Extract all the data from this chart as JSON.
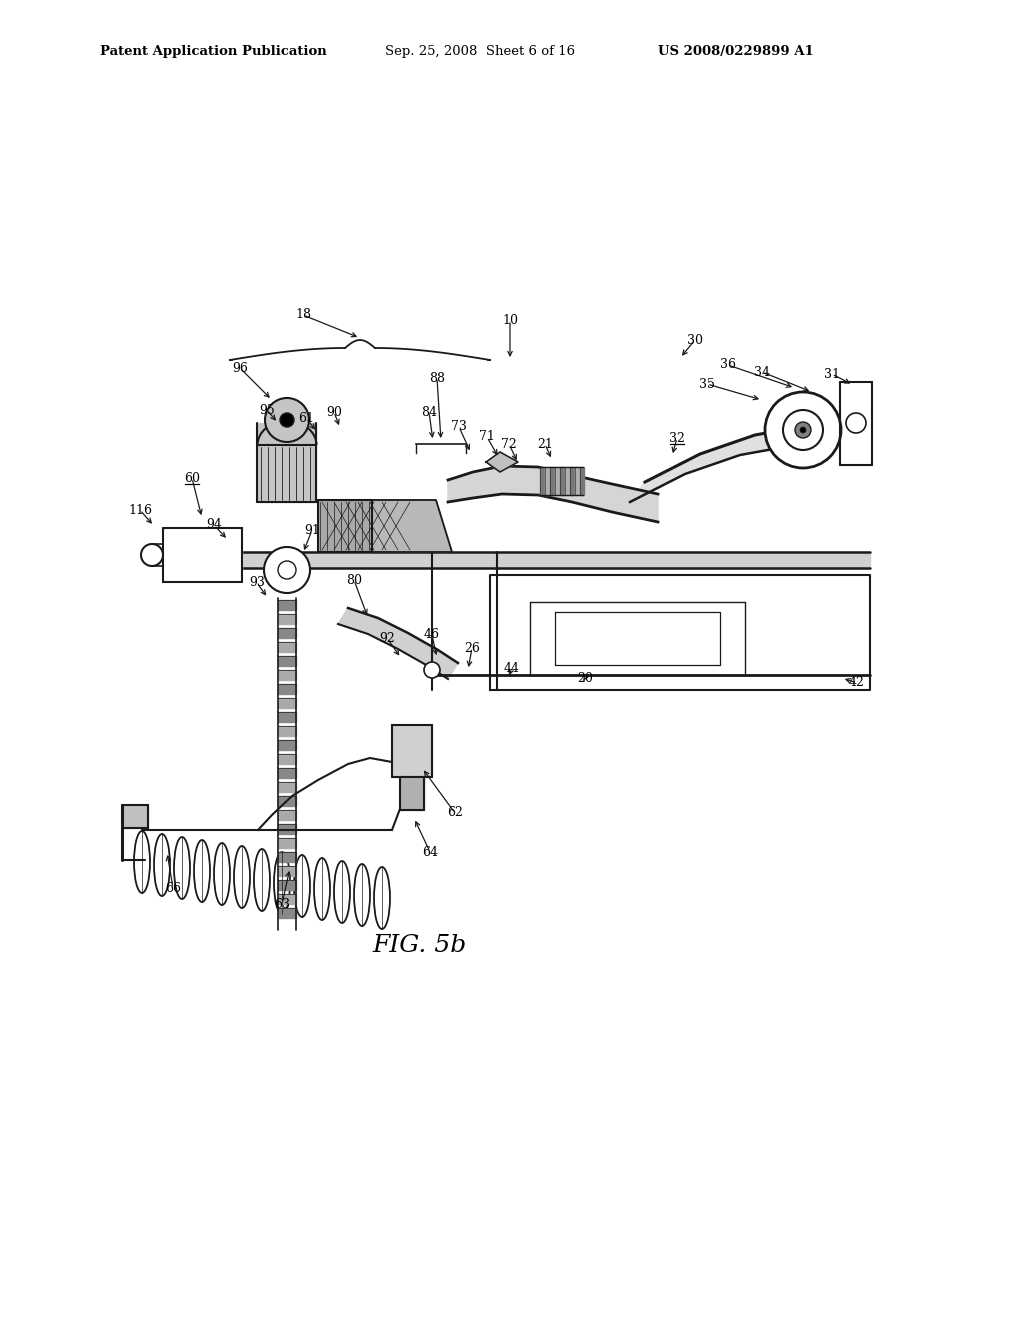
{
  "background_color": "#ffffff",
  "header_left": "Patent Application Publication",
  "header_center": "Sep. 25, 2008  Sheet 6 of 16",
  "header_right": "US 2008/0229899 A1",
  "figure_label": "FIG. 5b",
  "header_fontsize": 9.5,
  "figure_label_fontsize": 18,
  "line_color": "#1a1a1a",
  "label_fontsize": 9,
  "labels": [
    [
      303,
      1005,
      360,
      963,
      "18",
      false
    ],
    [
      510,
      1000,
      490,
      975,
      "10",
      false
    ],
    [
      695,
      980,
      680,
      962,
      "30",
      false
    ],
    [
      240,
      952,
      272,
      920,
      "96",
      false
    ],
    [
      437,
      942,
      441,
      882,
      "88",
      false
    ],
    [
      728,
      955,
      795,
      932,
      "36",
      false
    ],
    [
      762,
      948,
      812,
      928,
      "34",
      false
    ],
    [
      707,
      936,
      762,
      920,
      "35",
      false
    ],
    [
      832,
      946,
      853,
      935,
      "31",
      false
    ],
    [
      267,
      910,
      278,
      897,
      "95",
      false
    ],
    [
      306,
      902,
      317,
      888,
      "61",
      false
    ],
    [
      334,
      908,
      340,
      892,
      "90",
      false
    ],
    [
      429,
      908,
      433,
      879,
      "84",
      false
    ],
    [
      459,
      893,
      471,
      867,
      "73",
      false
    ],
    [
      487,
      883,
      499,
      862,
      "71",
      false
    ],
    [
      509,
      876,
      518,
      857,
      "72",
      false
    ],
    [
      545,
      876,
      552,
      860,
      "21",
      false
    ],
    [
      677,
      882,
      672,
      864,
      "32",
      true
    ],
    [
      192,
      842,
      202,
      802,
      "60",
      true
    ],
    [
      140,
      810,
      154,
      794,
      "116",
      false
    ],
    [
      214,
      795,
      228,
      780,
      "94",
      false
    ],
    [
      312,
      790,
      303,
      767,
      "91",
      false
    ],
    [
      354,
      740,
      368,
      702,
      "80",
      false
    ],
    [
      257,
      737,
      268,
      722,
      "93",
      false
    ],
    [
      387,
      682,
      401,
      662,
      "92",
      false
    ],
    [
      432,
      685,
      437,
      662,
      "46",
      false
    ],
    [
      472,
      672,
      468,
      650,
      "26",
      false
    ],
    [
      512,
      652,
      508,
      642,
      "44",
      false
    ],
    [
      585,
      642,
      582,
      637,
      "20",
      false
    ],
    [
      857,
      637,
      842,
      642,
      "42",
      false
    ],
    [
      455,
      507,
      422,
      552,
      "62",
      false
    ],
    [
      430,
      468,
      414,
      502,
      "64",
      false
    ],
    [
      282,
      416,
      290,
      452,
      "63",
      false
    ],
    [
      173,
      432,
      167,
      468,
      "66",
      false
    ]
  ]
}
